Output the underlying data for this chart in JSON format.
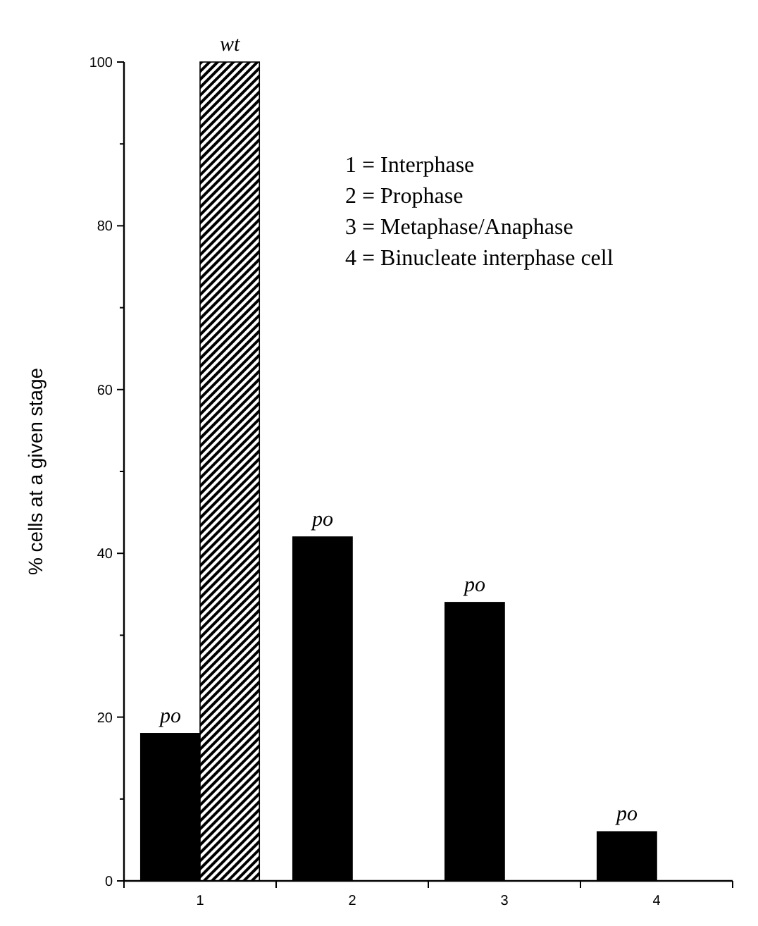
{
  "chart_data": {
    "type": "bar",
    "ylabel": "% cells at a given stage",
    "categories": [
      "1",
      "2",
      "3",
      "4"
    ],
    "series": [
      {
        "name": "po",
        "color": "#000000",
        "values": [
          18,
          42,
          34,
          6
        ]
      },
      {
        "name": "wt",
        "color": "#000000",
        "values": [
          100,
          0,
          0,
          0
        ]
      }
    ],
    "ylim": [
      0,
      100
    ],
    "yticks": [
      0,
      {
        "value": 10,
        "label": null
      },
      20,
      {
        "value": 30,
        "label": null
      },
      40,
      {
        "value": 50,
        "label": null
      },
      60,
      {
        "value": 70,
        "label": null
      },
      80,
      {
        "value": 90,
        "label": null
      },
      100
    ],
    "annotations": [
      "1 = Interphase",
      "2 = Prophase",
      "3 = Metaphase/Anaphase",
      "4 = Binucleate interphase cell"
    ]
  }
}
